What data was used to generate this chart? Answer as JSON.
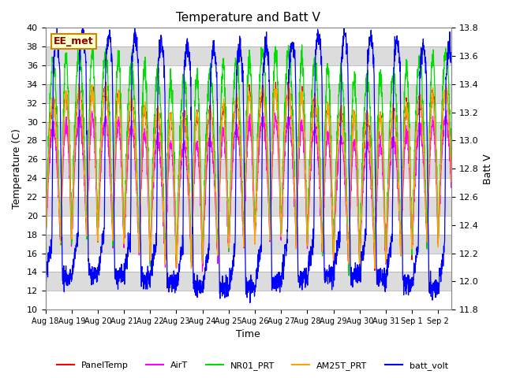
{
  "title": "Temperature and Batt V",
  "xlabel": "Time",
  "ylabel_left": "Temperature (C)",
  "ylabel_right": "Batt V",
  "ylim_left": [
    10,
    40
  ],
  "ylim_right": [
    11.8,
    13.8
  ],
  "xtick_labels": [
    "Aug 18",
    "Aug 19",
    "Aug 20",
    "Aug 21",
    "Aug 22",
    "Aug 23",
    "Aug 24",
    "Aug 25",
    "Aug 26",
    "Aug 27",
    "Aug 28",
    "Aug 29",
    "Aug 30",
    "Aug 31",
    "Sep 1",
    "Sep 2"
  ],
  "station_label": "EE_met",
  "legend_entries": [
    "PanelTemp",
    "AirT",
    "NR01_PRT",
    "AM25T_PRT",
    "batt_volt"
  ],
  "colors": {
    "PanelTemp": "#FF0000",
    "AirT": "#FF00FF",
    "NR01_PRT": "#00DD00",
    "AM25T_PRT": "#FFA500",
    "batt_volt": "#0000FF"
  },
  "band_colors": [
    "#FFFFFF",
    "#DCDCDC"
  ],
  "title_fontsize": 11,
  "label_fontsize": 9,
  "tick_fontsize": 8,
  "n_days": 15.5,
  "pts_per_day": 144,
  "figwidth": 6.4,
  "figheight": 4.8,
  "dpi": 100
}
